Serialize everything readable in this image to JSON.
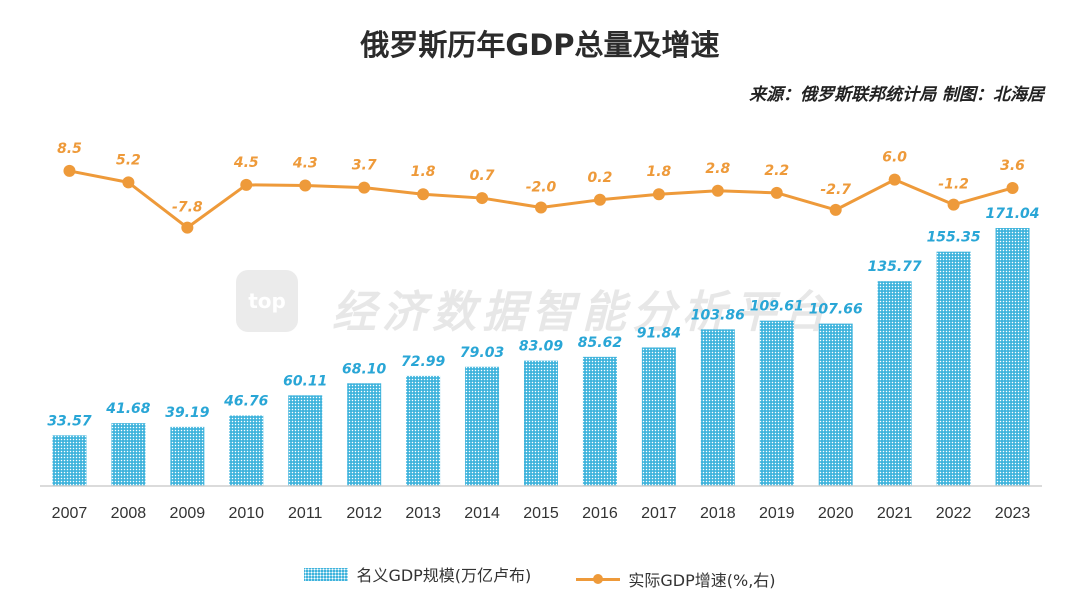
{
  "title": "俄罗斯历年GDP总量及增速",
  "source": "来源：俄罗斯联邦统计局  制图：北海居",
  "watermark": {
    "logo": "top",
    "text": "经济数据智能分析平台"
  },
  "colors": {
    "bar": "#3fb3dc",
    "bar_label": "#29a6d6",
    "line": "#ee9a3a"
  },
  "chart_data": {
    "type": "bar+line",
    "categories": [
      "2007",
      "2008",
      "2009",
      "2010",
      "2011",
      "2012",
      "2013",
      "2014",
      "2015",
      "2016",
      "2017",
      "2018",
      "2019",
      "2020",
      "2021",
      "2022",
      "2023"
    ],
    "series": [
      {
        "name": "名义GDP规模(万亿卢布)",
        "type": "bar",
        "axis": "left",
        "values": [
          33.57,
          41.68,
          39.19,
          46.76,
          60.11,
          68.1,
          72.99,
          79.03,
          83.09,
          85.62,
          91.84,
          103.86,
          109.61,
          107.66,
          135.77,
          155.35,
          171.04
        ],
        "labels": [
          "33.57",
          "41.68",
          "39.19",
          "46.76",
          "60.11",
          "68.10",
          "72.99",
          "79.03",
          "83.09",
          "85.62",
          "91.84",
          "103.86",
          "109.61",
          "107.66",
          "135.77",
          "155.35",
          "171.04"
        ]
      },
      {
        "name": "实际GDP增速(%,右)",
        "type": "line",
        "axis": "right",
        "values": [
          8.5,
          5.2,
          -7.8,
          4.5,
          4.3,
          3.7,
          1.8,
          0.7,
          -2.0,
          0.2,
          1.8,
          2.8,
          2.2,
          -2.7,
          6.0,
          -1.2,
          3.6
        ],
        "labels": [
          "8.5",
          "5.2",
          "-7.8",
          "4.5",
          "4.3",
          "3.7",
          "1.8",
          "0.7",
          "-2.0",
          "0.2",
          "1.8",
          "2.8",
          "2.2",
          "-2.7",
          "6.0",
          "-1.2",
          "3.6"
        ]
      }
    ],
    "legend_position": "bottom"
  }
}
